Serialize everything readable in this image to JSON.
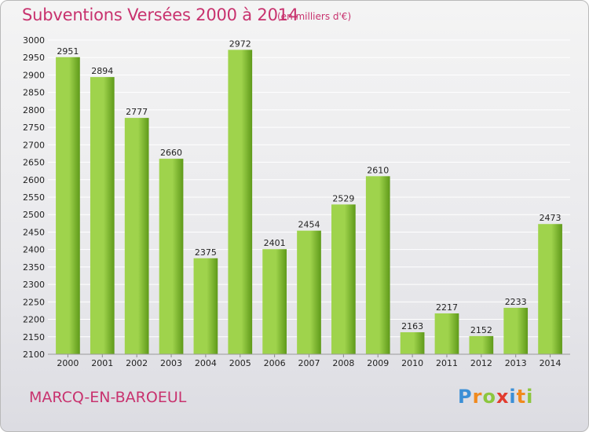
{
  "header": {
    "title": "Subventions Versées 2000 à 2014",
    "unit": "(en milliers d'€)"
  },
  "footer": {
    "place": "MARCQ-EN-BAROEUL",
    "logo_letters": [
      "P",
      "r",
      "o",
      "x",
      "i",
      "t",
      "i"
    ],
    "logo_colors": [
      "#3b8fd6",
      "#f08a1e",
      "#8cc63e",
      "#e23b2e",
      "#3b8fd6",
      "#f08a1e",
      "#8cc63e"
    ]
  },
  "colors": {
    "bar_light": "#9fd34c",
    "bar_dark": "#5f9a1a",
    "grid": "#ffffff",
    "accent": "#c8326e"
  },
  "chart_data": {
    "type": "bar",
    "categories": [
      "2000",
      "2001",
      "2002",
      "2003",
      "2004",
      "2005",
      "2006",
      "2007",
      "2008",
      "2009",
      "2010",
      "2011",
      "2012",
      "2013",
      "2014"
    ],
    "values": [
      2951,
      2894,
      2777,
      2660,
      2375,
      2972,
      2401,
      2454,
      2529,
      2610,
      2163,
      2217,
      2152,
      2233,
      2473
    ],
    "ylim": [
      2100,
      3000
    ],
    "ytick_step": 50,
    "grid": true,
    "data_labels": true
  }
}
